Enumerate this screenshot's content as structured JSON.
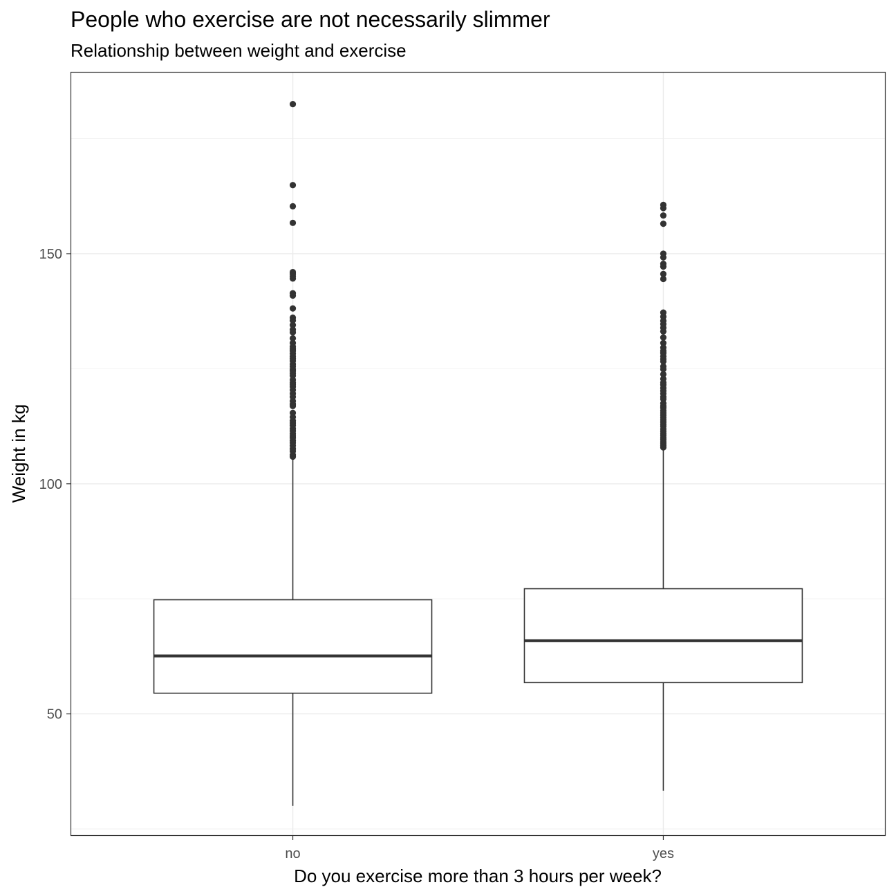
{
  "chart_data": {
    "type": "box",
    "title": "People who exercise are not necessarily slimmer",
    "subtitle": "Relationship between weight and exercise",
    "xlabel": "Do you exercise more than 3 hours per week?",
    "ylabel": "Weight in kg",
    "categories": [
      "no",
      "yes"
    ],
    "ylim": [
      23.5,
      189.5
    ],
    "yticks": [
      50,
      100,
      150
    ],
    "grid": true,
    "boxes": [
      {
        "category": "no",
        "q1": 54.5,
        "median": 62.6,
        "q3": 74.8,
        "whisker_low": 30.0,
        "whisker_high": 105.5,
        "outliers": [
          182.5,
          164.9,
          160.3,
          156.7,
          146.0,
          145.6,
          145.1,
          144.6,
          141.4,
          140.9,
          138.1,
          136.1,
          135.5,
          134.5,
          133.5,
          132.9,
          131.6,
          130.6,
          129.8,
          129.3,
          128.9,
          128.3,
          127.7,
          127.2,
          126.7,
          126.0,
          125.5,
          124.9,
          124.5,
          124.0,
          123.5,
          122.6,
          122.0,
          121.6,
          121.1,
          120.4,
          119.6,
          118.9,
          118.0,
          117.3,
          116.9,
          115.4,
          114.5,
          113.7,
          113.2,
          112.7,
          112.0,
          111.5,
          110.9,
          110.4,
          110.0,
          109.4,
          108.9,
          108.3,
          107.6,
          107.1,
          106.3,
          105.9
        ]
      },
      {
        "category": "yes",
        "q1": 56.8,
        "median": 65.9,
        "q3": 77.2,
        "whisker_low": 33.3,
        "whisker_high": 107.5,
        "outliers": [
          160.6,
          159.9,
          158.3,
          156.5,
          150.0,
          149.2,
          147.8,
          147.2,
          145.6,
          144.5,
          137.2,
          136.3,
          135.4,
          134.7,
          133.9,
          133.1,
          131.8,
          130.6,
          129.6,
          128.9,
          128.4,
          127.7,
          127.1,
          126.6,
          125.5,
          124.9,
          123.8,
          122.8,
          122.0,
          121.5,
          120.8,
          120.2,
          119.6,
          118.9,
          118.4,
          117.5,
          116.9,
          116.5,
          115.9,
          115.4,
          114.9,
          114.4,
          113.9,
          113.4,
          112.9,
          112.5,
          111.9,
          111.4,
          110.9,
          110.5,
          110.0,
          109.6,
          109.1,
          108.7,
          108.3,
          107.9
        ]
      }
    ]
  }
}
